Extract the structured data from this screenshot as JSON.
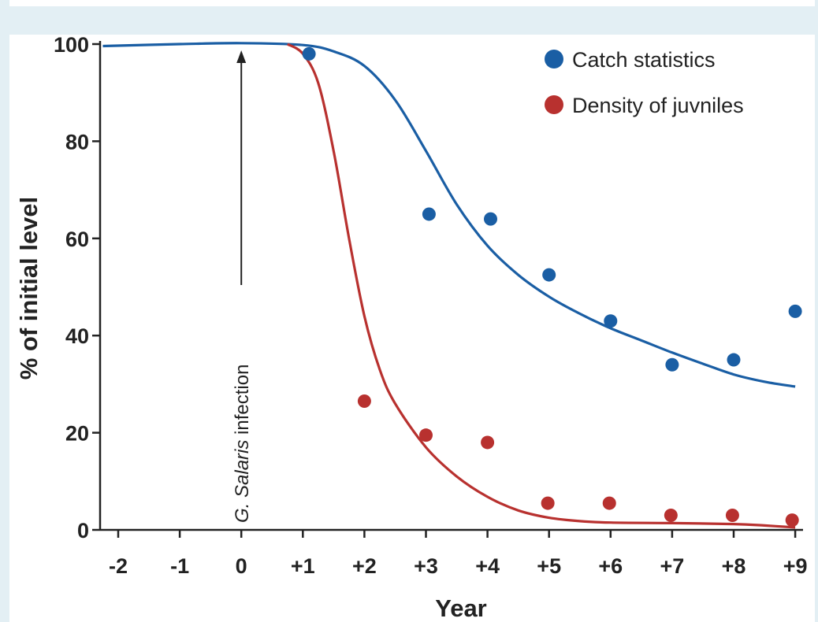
{
  "chart_data": {
    "type": "scatter",
    "xlabel": "Year",
    "ylabel": "% of initial level",
    "x_ticks": [
      "-2",
      "-1",
      "0",
      "+1",
      "+2",
      "+3",
      "+4",
      "+5",
      "+6",
      "+7",
      "+8",
      "+9"
    ],
    "y_ticks": [
      "0",
      "20",
      "40",
      "60",
      "80",
      "100"
    ],
    "xlim": [
      -2.25,
      9
    ],
    "ylim": [
      0,
      100
    ],
    "grid": false,
    "legend_position": "top-right",
    "annotation": {
      "italic": "G. Salaris",
      "text": " infection",
      "x": 0
    },
    "series": [
      {
        "name": "Catch statistics",
        "color": "#1a5ea4",
        "points": [
          {
            "x": 1.1,
            "y": 98
          },
          {
            "x": 3.05,
            "y": 65
          },
          {
            "x": 4.05,
            "y": 64
          },
          {
            "x": 5.0,
            "y": 52.5
          },
          {
            "x": 6.0,
            "y": 43
          },
          {
            "x": 7.0,
            "y": 34
          },
          {
            "x": 8.0,
            "y": 35
          },
          {
            "x": 9.0,
            "y": 45
          }
        ],
        "curve": [
          {
            "x": -2.25,
            "y": 99.6
          },
          {
            "x": -1,
            "y": 100
          },
          {
            "x": 0,
            "y": 100.2
          },
          {
            "x": 1,
            "y": 99.8
          },
          {
            "x": 1.5,
            "y": 98.5
          },
          {
            "x": 2,
            "y": 95.5
          },
          {
            "x": 2.5,
            "y": 88.5
          },
          {
            "x": 3,
            "y": 78
          },
          {
            "x": 3.5,
            "y": 67
          },
          {
            "x": 4,
            "y": 58.5
          },
          {
            "x": 4.5,
            "y": 52.5
          },
          {
            "x": 5,
            "y": 48
          },
          {
            "x": 5.5,
            "y": 44.5
          },
          {
            "x": 6,
            "y": 41.5
          },
          {
            "x": 6.5,
            "y": 39
          },
          {
            "x": 7,
            "y": 36.5
          },
          {
            "x": 7.5,
            "y": 34.2
          },
          {
            "x": 8,
            "y": 32
          },
          {
            "x": 8.5,
            "y": 30.5
          },
          {
            "x": 9,
            "y": 29.5
          }
        ]
      },
      {
        "name": "Density of juvniles",
        "color": "#b8312f",
        "points": [
          {
            "x": 2.0,
            "y": 26.5
          },
          {
            "x": 3.0,
            "y": 19.5
          },
          {
            "x": 4.0,
            "y": 18
          },
          {
            "x": 4.98,
            "y": 5.5
          },
          {
            "x": 5.98,
            "y": 5.5
          },
          {
            "x": 6.98,
            "y": 3
          },
          {
            "x": 7.98,
            "y": 3
          },
          {
            "x": 8.95,
            "y": 2
          }
        ],
        "curve": [
          {
            "x": 0.75,
            "y": 100
          },
          {
            "x": 1,
            "y": 98
          },
          {
            "x": 1.25,
            "y": 92
          },
          {
            "x": 1.5,
            "y": 78
          },
          {
            "x": 1.75,
            "y": 60
          },
          {
            "x": 2,
            "y": 44
          },
          {
            "x": 2.25,
            "y": 33
          },
          {
            "x": 2.5,
            "y": 26
          },
          {
            "x": 3,
            "y": 17
          },
          {
            "x": 3.5,
            "y": 11
          },
          {
            "x": 4,
            "y": 6.8
          },
          {
            "x": 4.5,
            "y": 4
          },
          {
            "x": 5,
            "y": 2.5
          },
          {
            "x": 5.5,
            "y": 1.8
          },
          {
            "x": 6,
            "y": 1.5
          },
          {
            "x": 7,
            "y": 1.4
          },
          {
            "x": 8,
            "y": 1.2
          },
          {
            "x": 8.5,
            "y": 0.9
          },
          {
            "x": 9,
            "y": 0.5
          }
        ]
      }
    ]
  }
}
